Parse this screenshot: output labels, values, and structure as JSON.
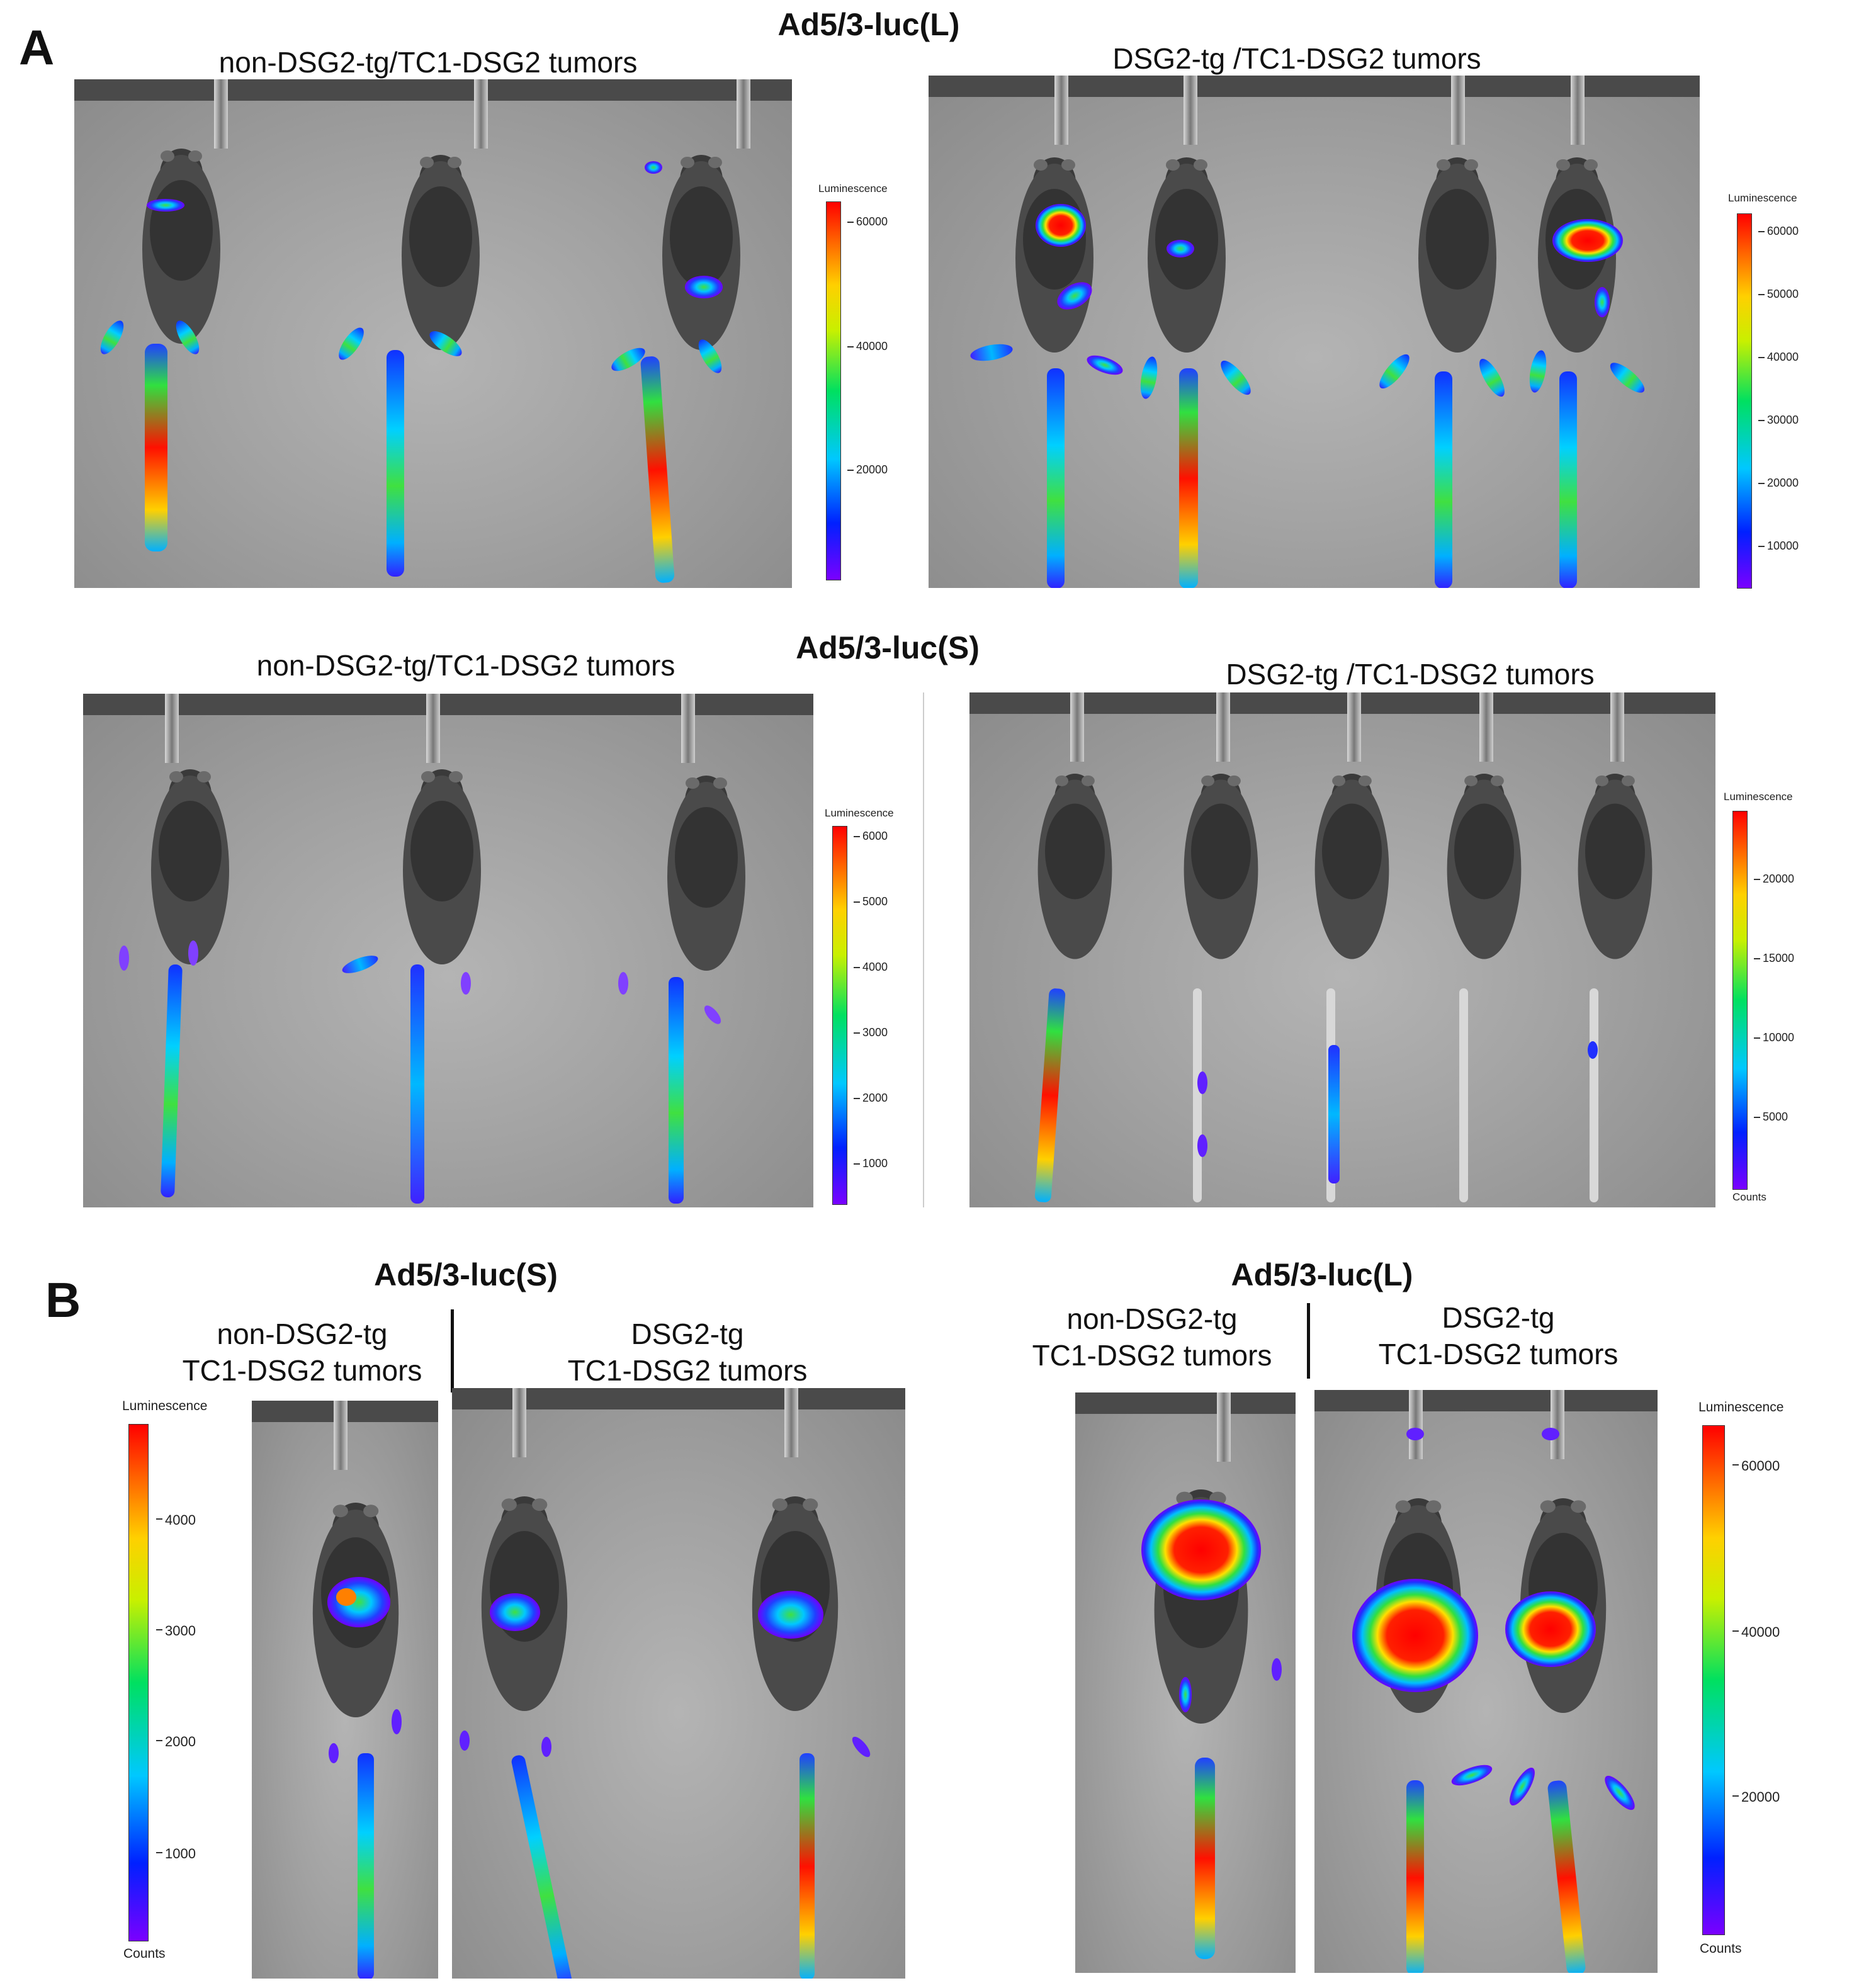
{
  "panel_a": {
    "letter": "A",
    "top": {
      "title": "Ad5/3-luc(L)",
      "left_label": "non-DSG2-tg/TC1-DSG2 tumors",
      "right_label": "DSG2-tg /TC1-DSG2 tumors",
      "left_scale": {
        "title": "Luminescence",
        "ticks": [
          "60000",
          "40000",
          "20000"
        ],
        "counts": ""
      },
      "right_scale": {
        "title": "Luminescence",
        "ticks": [
          "60000",
          "50000",
          "40000",
          "30000",
          "20000",
          "10000"
        ],
        "counts": ""
      }
    },
    "bottom": {
      "title": "Ad5/3-luc(S)",
      "left_label": "non-DSG2-tg/TC1-DSG2 tumors",
      "right_label": "DSG2-tg /TC1-DSG2 tumors",
      "left_scale": {
        "title": "Luminescence",
        "ticks": [
          "6000",
          "5000",
          "4000",
          "3000",
          "2000",
          "1000"
        ],
        "counts": ""
      },
      "right_scale": {
        "title": "Luminescence",
        "ticks": [
          "20000",
          "15000",
          "10000",
          "5000"
        ],
        "counts": "Counts"
      }
    }
  },
  "panel_b": {
    "letter": "B",
    "left": {
      "title": "Ad5/3-luc(S)",
      "group1_line1": "non-DSG2-tg",
      "group1_line2": "TC1-DSG2 tumors",
      "group2_line1": "DSG2-tg",
      "group2_line2": "TC1-DSG2 tumors",
      "scale": {
        "title": "Luminescence",
        "ticks": [
          "4000",
          "3000",
          "2000",
          "1000"
        ],
        "counts": "Counts"
      }
    },
    "right": {
      "title": "Ad5/3-luc(L)",
      "group1_line1": "non-DSG2-tg",
      "group1_line2": "TC1-DSG2 tumors",
      "group2_line1": "DSG2-tg",
      "group2_line2": "TC1-DSG2 tumors",
      "scale": {
        "title": "Luminescence",
        "ticks": [
          "60000",
          "40000",
          "20000"
        ],
        "counts": "Counts"
      }
    }
  }
}
